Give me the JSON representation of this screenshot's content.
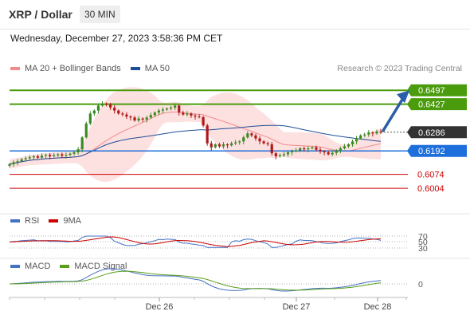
{
  "header": {
    "pair": "XRP / Dollar",
    "timeframe": "30 MIN"
  },
  "datetime": "Wednesday, December 27, 2023 3:58:36 PM CET",
  "legend": {
    "items": [
      {
        "label": "MA 20 + Bollinger Bands",
        "color": "#f28b8b"
      },
      {
        "label": "MA 50",
        "color": "#1f4e99"
      }
    ],
    "credit": "Research © 2023 Trading Central"
  },
  "rsi_legend": [
    {
      "label": "RSI",
      "color": "#4472c4"
    },
    {
      "label": "9MA",
      "color": "#cc0000"
    }
  ],
  "macd_legend": [
    {
      "label": "MACD",
      "color": "#4472c4"
    },
    {
      "label": "MACD Signal",
      "color": "#5a9e1a"
    }
  ],
  "chart_data": {
    "type": "line",
    "main": {
      "y_range": [
        0.59,
        0.655
      ],
      "close_series": [
        0.6125,
        0.6135,
        0.614,
        0.615,
        0.6155,
        0.616,
        0.6165,
        0.6158,
        0.6168,
        0.6172,
        0.6165,
        0.617,
        0.6175,
        0.6168,
        0.6172,
        0.6178,
        0.6185,
        0.62,
        0.626,
        0.633,
        0.638,
        0.6395,
        0.642,
        0.643,
        0.6425,
        0.641,
        0.6395,
        0.638,
        0.6375,
        0.6365,
        0.636,
        0.6345,
        0.6355,
        0.635,
        0.636,
        0.6372,
        0.6385,
        0.6395,
        0.64,
        0.6405,
        0.641,
        0.642,
        0.6385,
        0.6375,
        0.638,
        0.637,
        0.6365,
        0.6362,
        0.632,
        0.623,
        0.621,
        0.6225,
        0.6215,
        0.6225,
        0.622,
        0.623,
        0.6235,
        0.624,
        0.626,
        0.628,
        0.627,
        0.6255,
        0.624,
        0.623,
        0.6225,
        0.618,
        0.6165,
        0.617,
        0.6175,
        0.6185,
        0.619,
        0.6195,
        0.6205,
        0.62,
        0.6205,
        0.621,
        0.6198,
        0.619,
        0.6185,
        0.6175,
        0.6182,
        0.6195,
        0.6205,
        0.6215,
        0.6225,
        0.624,
        0.6255,
        0.627,
        0.6275,
        0.6285,
        0.628,
        0.629,
        0.6286
      ],
      "levels": [
        {
          "value": 0.6497,
          "label": "0.6497",
          "kind": "resistance",
          "color": "#4a9c0c"
        },
        {
          "value": 0.6427,
          "label": "0.6427",
          "kind": "resistance",
          "color": "#4a9c0c"
        },
        {
          "value": 0.6286,
          "label": "0.6286",
          "kind": "last",
          "color": "#333333"
        },
        {
          "value": 0.6192,
          "label": "0.6192",
          "kind": "pivot",
          "color": "#1e6fdc"
        },
        {
          "value": 0.6074,
          "label": "0.6074",
          "kind": "support",
          "color": "#cc0000"
        },
        {
          "value": 0.6004,
          "label": "0.6004",
          "kind": "support",
          "color": "#cc0000"
        }
      ],
      "forecast_target": 0.6497
    },
    "rsi": {
      "levels": [
        "70",
        "50",
        "30"
      ]
    },
    "macd": {
      "zero_label": "0"
    },
    "x_ticks": [
      "Dec 26",
      "Dec 27",
      "Dec 28"
    ]
  }
}
